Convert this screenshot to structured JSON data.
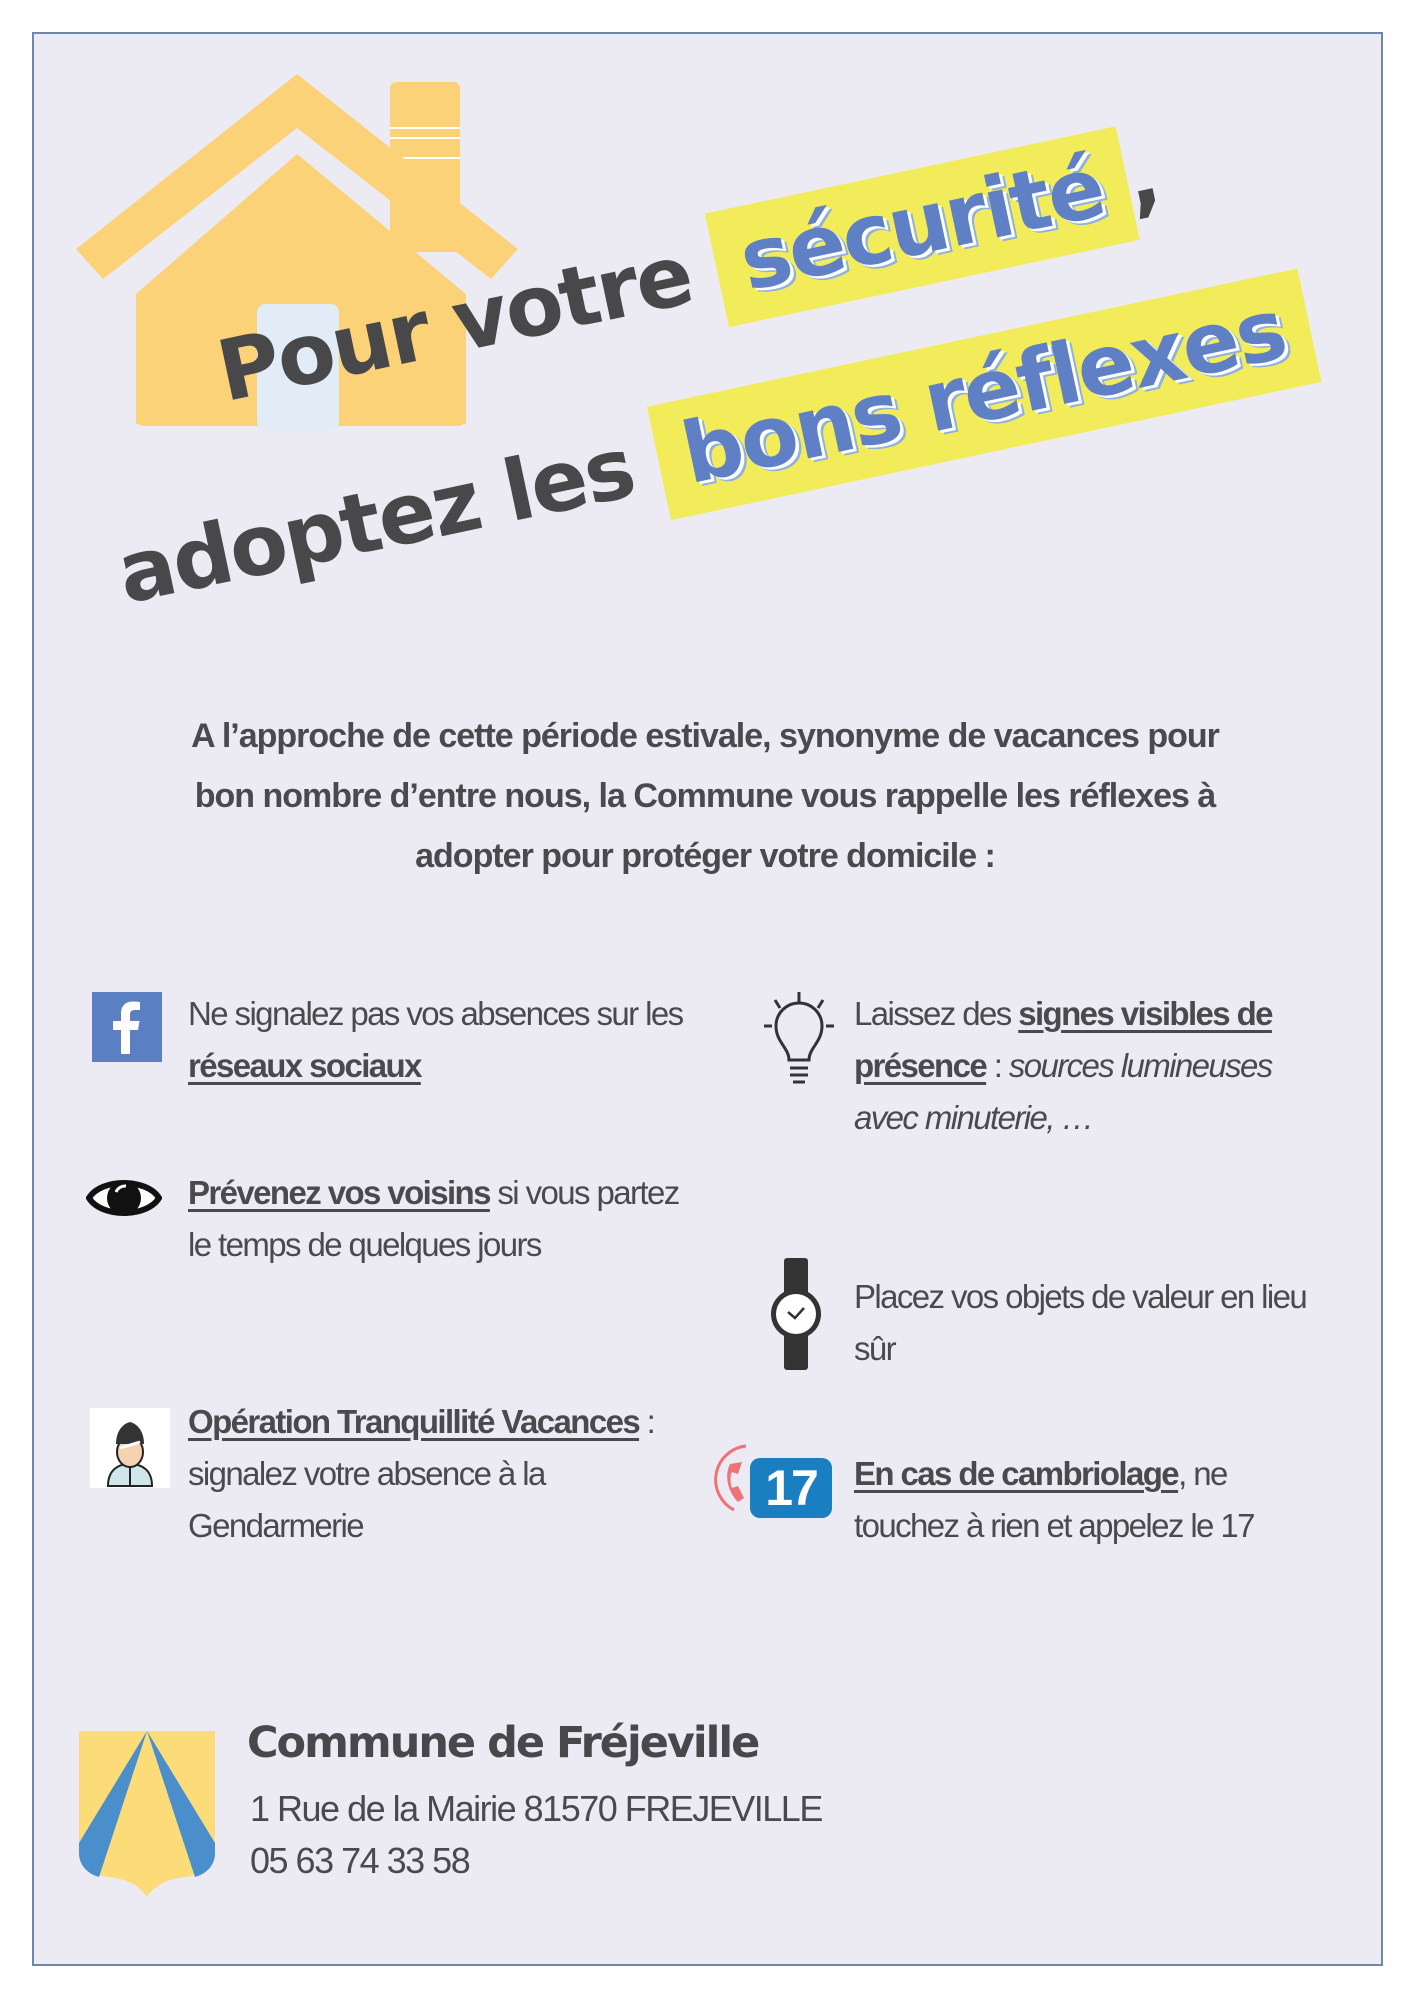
{
  "title": {
    "line1_plain": "Pour votre",
    "line1_highlight": "sécurité",
    "line1_comma": ",",
    "line2_plain": "adoptez les",
    "line2_highlight": "bons réflexes"
  },
  "intro": [
    "A l’approche de cette période estivale, synonyme de vacances pour",
    "bon nombre d’entre nous, la Commune vous rappelle les réflexes à",
    "adopter pour protéger votre domicile :"
  ],
  "tips": {
    "social": {
      "icon": "facebook-icon",
      "t1": "Ne signalez pas vos absences sur les ",
      "b1": "réseaux sociaux"
    },
    "neighbours": {
      "icon": "eye-icon",
      "b1": "Prévenez vos voisins",
      "t1": " si vous partez le temps de quelques jours"
    },
    "otv": {
      "icon": "gendarme-icon",
      "b1": "Opération Tranquillité Vacances",
      "t1": " : signalez votre absence à la Gendarmerie"
    },
    "presence": {
      "icon": "lightbulb-icon",
      "t1": "Laissez des ",
      "b1": "signes visibles de présence",
      "t2": " : ",
      "i1": "sources lumineuses avec minuterie, …"
    },
    "valuables": {
      "icon": "watch-icon",
      "t1": "Placez vos objets de valeur en lieu sûr"
    },
    "burglary": {
      "icon": "phone-17-icon",
      "badge": "17",
      "b1": "En cas de cambriolage",
      "t1": ", ne touchez à rien et appelez le 17"
    }
  },
  "footer": {
    "name": "Commune de Fréjeville",
    "address": "1 Rue de la Mairie 81570 FREJEVILLE",
    "phone": "05 63 74 33 58"
  },
  "colors": {
    "background": "#ecebf4",
    "border": "#6f87ad",
    "highlight": "#f3ec5a",
    "accent_blue": "#5f80c4",
    "house": "#fbd277",
    "text": "#4a4a4c"
  }
}
